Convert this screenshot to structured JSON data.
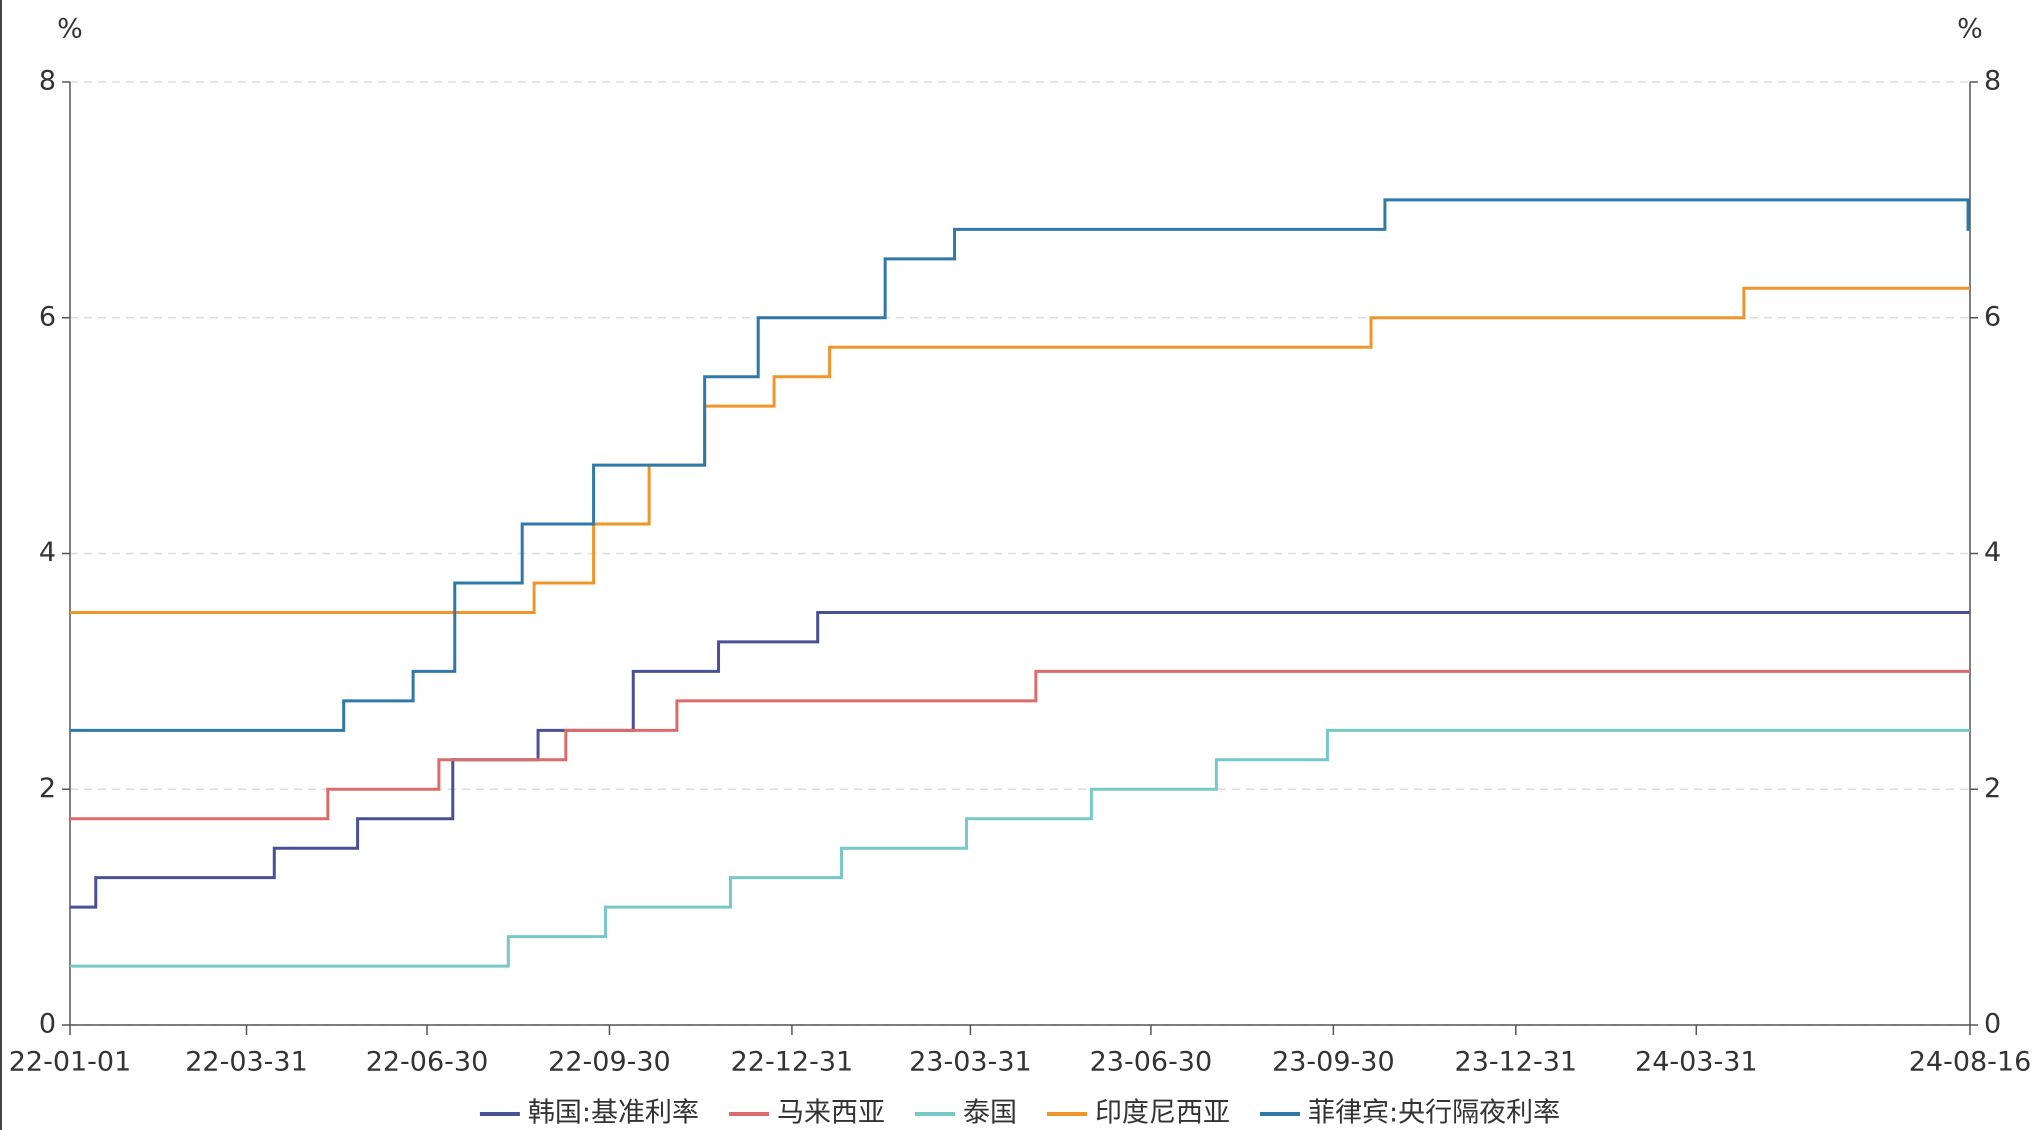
{
  "chart_data": {
    "type": "step-line",
    "y_label": "%",
    "y2_label": "%",
    "xlim": [
      "22-01-01",
      "24-08-16"
    ],
    "xticks": [
      "22-01-01",
      "22-03-31",
      "22-06-30",
      "22-09-30",
      "22-12-31",
      "23-03-31",
      "23-06-30",
      "23-09-30",
      "23-12-31",
      "24-03-31",
      "24-08-16"
    ],
    "ylim": [
      0,
      8
    ],
    "yticks": [
      0,
      2,
      4,
      6,
      8
    ],
    "y2lim": [
      0,
      8
    ],
    "y2ticks": [
      0,
      2,
      4,
      6,
      8
    ],
    "grid": true,
    "legend": "bottom",
    "series": [
      {
        "name": "韩国:基准利率",
        "color": "#4a5096",
        "x": [
          "22-01-01",
          "22-01-14",
          "22-04-14",
          "22-05-26",
          "22-07-13",
          "22-08-25",
          "22-10-12",
          "22-11-24",
          "23-01-13",
          "24-08-16"
        ],
        "values": [
          1.0,
          1.25,
          1.5,
          1.75,
          2.25,
          2.5,
          3.0,
          3.25,
          3.5,
          3.5
        ]
      },
      {
        "name": "马来西亚",
        "color": "#dc6b6b",
        "x": [
          "22-01-01",
          "22-05-11",
          "22-07-06",
          "22-09-08",
          "22-11-03",
          "23-05-03",
          "24-08-16"
        ],
        "values": [
          1.75,
          2.0,
          2.25,
          2.5,
          2.75,
          3.0,
          3.0
        ]
      },
      {
        "name": "泰国",
        "color": "#77c8c8",
        "x": [
          "22-01-01",
          "22-08-10",
          "22-09-28",
          "22-11-30",
          "23-01-25",
          "23-03-29",
          "23-05-31",
          "23-08-02",
          "23-09-27",
          "24-08-16"
        ],
        "values": [
          0.5,
          0.75,
          1.0,
          1.25,
          1.5,
          1.75,
          2.0,
          2.25,
          2.5,
          2.5
        ]
      },
      {
        "name": "印度尼西亚",
        "color": "#f0952a",
        "x": [
          "22-01-01",
          "22-08-23",
          "22-09-22",
          "22-10-20",
          "22-11-17",
          "22-12-22",
          "23-01-19",
          "23-10-19",
          "24-04-24",
          "24-08-16"
        ],
        "values": [
          3.5,
          3.75,
          4.25,
          4.75,
          5.25,
          5.5,
          5.75,
          6.0,
          6.25,
          6.25
        ]
      },
      {
        "name": "菲律宾:央行隔夜利率",
        "color": "#2f79a8",
        "x": [
          "22-01-01",
          "22-05-19",
          "22-06-23",
          "22-07-14",
          "22-08-17",
          "22-09-22",
          "22-11-17",
          "22-12-14",
          "23-02-16",
          "23-03-23",
          "23-10-26",
          "24-08-15",
          "24-08-16"
        ],
        "values": [
          2.5,
          2.75,
          3.0,
          3.75,
          4.25,
          4.75,
          5.5,
          6.0,
          6.5,
          6.75,
          7.0,
          6.75,
          6.75
        ]
      }
    ]
  }
}
